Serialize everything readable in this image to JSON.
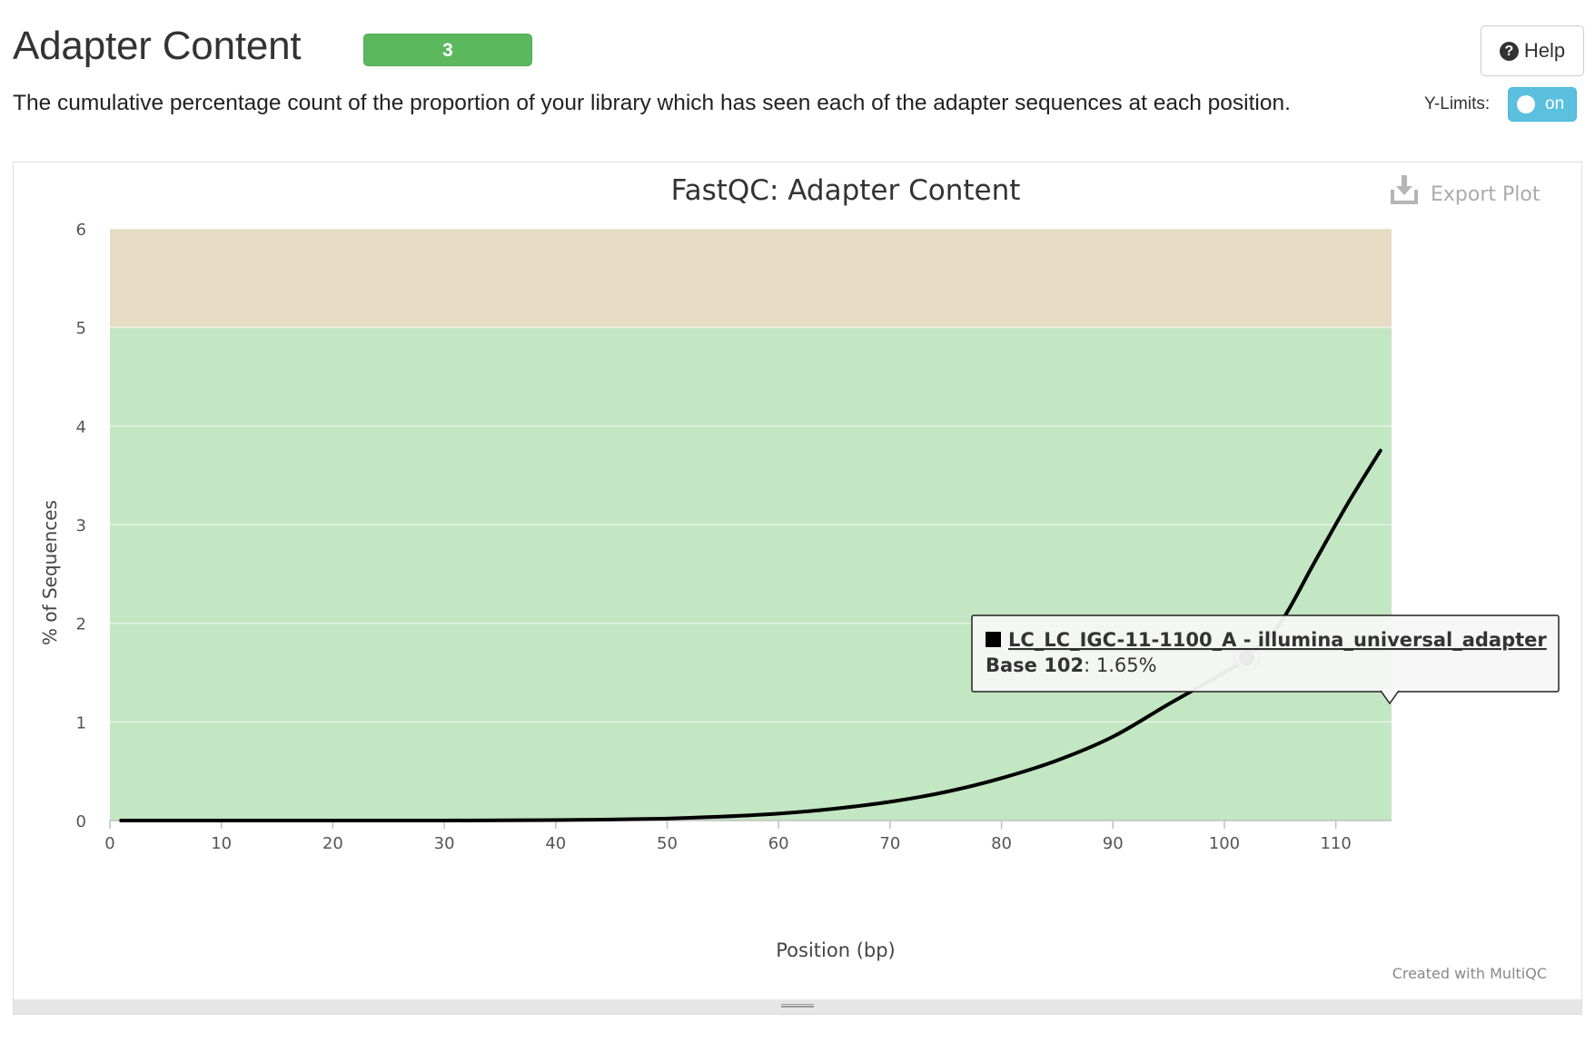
{
  "header": {
    "title": "Adapter Content",
    "badge": "3",
    "description": "The cumulative percentage count of the proportion of your library which has seen each of the adapter sequences at each position.",
    "help_label": "Help",
    "ylimits_label": "Y-Limits:",
    "toggle_label": "on"
  },
  "colors": {
    "badge": "#5cb85c",
    "toggle": "#5bc0de",
    "band_pass": "#c3e6c3",
    "band_warn": "#e6dcc3",
    "line": "#000000"
  },
  "plot": {
    "export_label": "Export Plot",
    "credit": "Created with MultiQC"
  },
  "tooltip": {
    "series_name": "LC_LC_IGC-11-1100_A - illumina_universal_adapter",
    "point_label": "Base 102",
    "point_value": ": 1.65%"
  },
  "chart_data": {
    "type": "line",
    "title": "FastQC: Adapter Content",
    "xlabel": "Position (bp)",
    "ylabel": "% of Sequences",
    "xlim": [
      0,
      115
    ],
    "ylim": [
      0,
      6
    ],
    "xticks": [
      0,
      10,
      20,
      30,
      40,
      50,
      60,
      70,
      80,
      90,
      100,
      110
    ],
    "yticks": [
      0,
      1,
      2,
      3,
      4,
      5,
      6
    ],
    "bands": [
      {
        "from": 0,
        "to": 5,
        "level": "pass"
      },
      {
        "from": 5,
        "to": 6,
        "level": "warn"
      }
    ],
    "series": [
      {
        "name": "LC_LC_IGC-11-1100_A - illumina_universal_adapter",
        "x": [
          1,
          10,
          20,
          30,
          40,
          45,
          50,
          55,
          60,
          65,
          70,
          75,
          80,
          85,
          90,
          95,
          100,
          102,
          105,
          108,
          111,
          114
        ],
        "y": [
          0,
          0,
          0,
          0,
          0.005,
          0.01,
          0.02,
          0.04,
          0.07,
          0.12,
          0.19,
          0.29,
          0.43,
          0.61,
          0.85,
          1.18,
          1.5,
          1.65,
          2.0,
          2.6,
          3.2,
          3.75
        ]
      }
    ],
    "highlight": {
      "x": 102,
      "y": 1.65
    },
    "grid": true
  }
}
